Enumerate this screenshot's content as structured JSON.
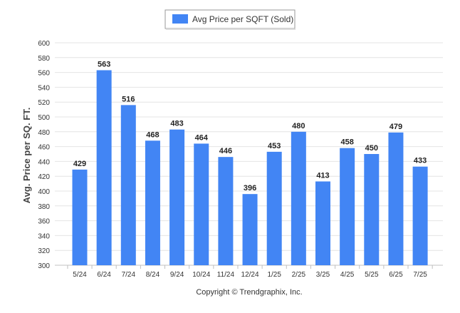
{
  "legend": {
    "label": "Avg Price per SQFT (Sold)"
  },
  "footer": {
    "copyright": "Copyright © Trendgraphix, Inc."
  },
  "colors": {
    "bar": "#4285f4",
    "grid": "#e4e4e4",
    "text": "#333333",
    "axis": "#c0c0c0"
  },
  "chart_data": {
    "type": "bar",
    "categories": [
      "5/24",
      "6/24",
      "7/24",
      "8/24",
      "9/24",
      "10/24",
      "11/24",
      "12/24",
      "1/25",
      "2/25",
      "3/25",
      "4/25",
      "5/25",
      "6/25",
      "7/25"
    ],
    "series": [
      {
        "name": "Avg Price per SQFT (Sold)",
        "values": [
          429,
          563,
          516,
          468,
          483,
          464,
          446,
          396,
          453,
          480,
          413,
          458,
          450,
          479,
          433
        ]
      }
    ],
    "data_labels": [
      "429",
      "563",
      "516",
      "468",
      "483",
      "464",
      "446",
      "396",
      "453",
      "480",
      "413",
      "458",
      "450",
      "479",
      "433"
    ],
    "ylabel": "Avg. Price per SQ. FT.",
    "xlabel": "",
    "ylim": [
      300,
      600
    ],
    "yticks": [
      300,
      320,
      340,
      360,
      380,
      400,
      420,
      440,
      460,
      480,
      500,
      520,
      540,
      560,
      580,
      600
    ],
    "grid": true,
    "legend_position": "top-center"
  }
}
